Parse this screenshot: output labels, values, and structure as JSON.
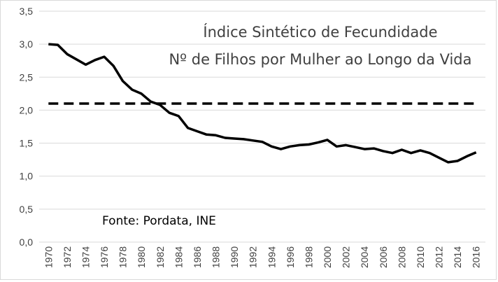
{
  "chart_data": {
    "type": "line",
    "title": "Índice Sintético de Fecundidade",
    "subtitle": "Nº de Filhos por Mulher ao Longo da Vida",
    "source": "Fonte: Pordata, INE",
    "xlabel": "",
    "ylabel": "",
    "ylim": [
      0,
      3.5
    ],
    "y_ticks": [
      "0,0",
      "0,5",
      "1,0",
      "1,5",
      "2,0",
      "2,5",
      "3,0",
      "3,5"
    ],
    "x_ticks": [
      "1970",
      "1972",
      "1974",
      "1976",
      "1978",
      "1980",
      "1982",
      "1984",
      "1986",
      "1988",
      "1990",
      "1992",
      "1994",
      "1996",
      "1998",
      "2000",
      "2002",
      "2004",
      "2006",
      "2008",
      "2010",
      "2012",
      "2014",
      "2016"
    ],
    "grid": "horizontal",
    "series": [
      {
        "color": "#000000",
        "style": "solid",
        "x": [
          1970,
          1971,
          1972,
          1973,
          1974,
          1975,
          1976,
          1977,
          1978,
          1979,
          1980,
          1981,
          1982,
          1983,
          1984,
          1985,
          1986,
          1987,
          1988,
          1989,
          1990,
          1991,
          1992,
          1993,
          1994,
          1995,
          1996,
          1997,
          1998,
          1999,
          2000,
          2001,
          2002,
          2003,
          2004,
          2005,
          2006,
          2007,
          2008,
          2009,
          2010,
          2011,
          2012,
          2013,
          2014,
          2015,
          2016
        ],
        "values": [
          3.0,
          2.99,
          2.85,
          2.77,
          2.69,
          2.76,
          2.81,
          2.67,
          2.44,
          2.31,
          2.25,
          2.13,
          2.08,
          1.96,
          1.91,
          1.73,
          1.68,
          1.63,
          1.62,
          1.58,
          1.57,
          1.56,
          1.54,
          1.52,
          1.45,
          1.41,
          1.45,
          1.47,
          1.48,
          1.51,
          1.55,
          1.45,
          1.47,
          1.44,
          1.41,
          1.42,
          1.38,
          1.35,
          1.4,
          1.35,
          1.39,
          1.35,
          1.28,
          1.21,
          1.23,
          1.3,
          1.36
        ]
      },
      {
        "color": "#000000",
        "style": "dashed",
        "x": [
          1970,
          2016
        ],
        "values": [
          2.1,
          2.1
        ]
      }
    ]
  }
}
